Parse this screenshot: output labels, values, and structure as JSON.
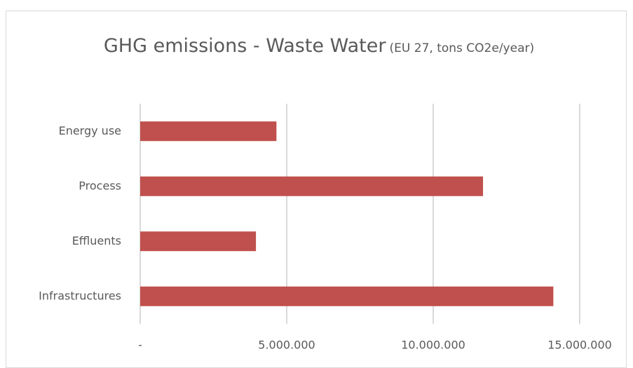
{
  "chart_data": {
    "type": "bar",
    "orientation": "horizontal",
    "title": "GHG emissions - Waste Water",
    "subtitle": "(EU 27, tons CO2e/year)",
    "categories": [
      "Energy use",
      "Process",
      "Effluents",
      "Infrastructures"
    ],
    "values": [
      4650000,
      11700000,
      3950000,
      14100000
    ],
    "color": "#c0504d",
    "xlim": [
      0,
      15000000
    ],
    "xticks": [
      {
        "value": 0,
        "label": "-"
      },
      {
        "value": 5000000,
        "label": "5.000.000"
      },
      {
        "value": 10000000,
        "label": "10.000.000"
      },
      {
        "value": 15000000,
        "label": "15.000.000"
      }
    ],
    "grid": true
  }
}
